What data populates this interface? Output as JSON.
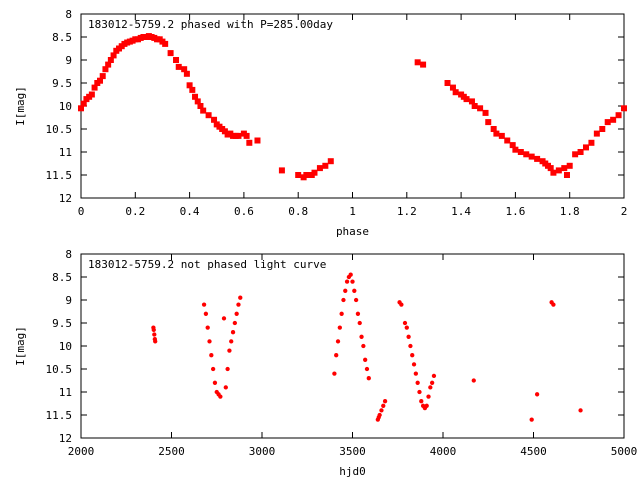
{
  "chart_data": [
    {
      "type": "scatter",
      "title": "183012-5759.2 phased with P=285.00day",
      "xlabel": "phase",
      "ylabel": "I[mag]",
      "xlim": [
        0,
        2
      ],
      "ylim": [
        12,
        8
      ],
      "y_inverted": true,
      "xticks": [
        "0",
        "0.2",
        "0.4",
        "0.6",
        "0.8",
        "1",
        "1.2",
        "1.4",
        "1.6",
        "1.8",
        "2"
      ],
      "yticks": [
        "8",
        "8.5",
        "9",
        "9.5",
        "10",
        "10.5",
        "11",
        "11.5",
        "12"
      ],
      "marker_color": "#ff0000",
      "marker": "plus-square",
      "series": [
        {
          "x": [
            0.0,
            0.01,
            0.02,
            0.03,
            0.04,
            0.05,
            0.06,
            0.07,
            0.08,
            0.09,
            0.1,
            0.11,
            0.12,
            0.13,
            0.14,
            0.15,
            0.16,
            0.17,
            0.18,
            0.19,
            0.2,
            0.21,
            0.22,
            0.23,
            0.24,
            0.25,
            0.26,
            0.27,
            0.28,
            0.29,
            0.3,
            0.31,
            0.33,
            0.35,
            0.36,
            0.38,
            0.39,
            0.4,
            0.41,
            0.42,
            0.43,
            0.44,
            0.45,
            0.47,
            0.49,
            0.5,
            0.51,
            0.52,
            0.53,
            0.54,
            0.55,
            0.56,
            0.57,
            0.58,
            0.6,
            0.61,
            0.62,
            0.65,
            0.74,
            0.8,
            0.82,
            0.83,
            0.85,
            0.86,
            0.88,
            0.9,
            0.92,
            1.24,
            1.26,
            1.35,
            1.37,
            1.38,
            1.4,
            1.41,
            1.42,
            1.44,
            1.45,
            1.47,
            1.49,
            1.5,
            1.52,
            1.53,
            1.55,
            1.57,
            1.59,
            1.6,
            1.62,
            1.64,
            1.66,
            1.68,
            1.7,
            1.71,
            1.72,
            1.73,
            1.74,
            1.76,
            1.78,
            1.79,
            1.8,
            1.82,
            1.84,
            1.86,
            1.88,
            1.9,
            1.92,
            1.94,
            1.96,
            1.98,
            2.0
          ],
          "y": [
            10.05,
            9.95,
            9.85,
            9.8,
            9.75,
            9.6,
            9.5,
            9.45,
            9.35,
            9.2,
            9.1,
            9.0,
            8.9,
            8.8,
            8.75,
            8.7,
            8.65,
            8.62,
            8.6,
            8.58,
            8.55,
            8.55,
            8.52,
            8.5,
            8.5,
            8.48,
            8.5,
            8.52,
            8.55,
            8.55,
            8.6,
            8.65,
            8.85,
            9.0,
            9.15,
            9.2,
            9.3,
            9.55,
            9.65,
            9.8,
            9.9,
            10.0,
            10.1,
            10.2,
            10.3,
            10.4,
            10.45,
            10.5,
            10.55,
            10.62,
            10.6,
            10.65,
            10.65,
            10.65,
            10.6,
            10.65,
            10.8,
            10.75,
            11.4,
            11.5,
            11.55,
            11.5,
            11.5,
            11.45,
            11.35,
            11.3,
            11.2,
            9.05,
            9.1,
            9.5,
            9.6,
            9.7,
            9.75,
            9.8,
            9.85,
            9.9,
            10.0,
            10.05,
            10.15,
            10.35,
            10.5,
            10.6,
            10.65,
            10.75,
            10.85,
            10.95,
            11.0,
            11.05,
            11.1,
            11.15,
            11.2,
            11.25,
            11.3,
            11.35,
            11.45,
            11.4,
            11.35,
            11.5,
            11.3,
            11.05,
            11.0,
            10.9,
            10.8,
            10.6,
            10.5,
            10.35,
            10.3,
            10.2,
            10.05
          ]
        }
      ]
    },
    {
      "type": "scatter",
      "title": "183012-5759.2 not phased light curve",
      "xlabel": "hjd0",
      "ylabel": "I[mag]",
      "xlim": [
        2000,
        5000
      ],
      "ylim": [
        12,
        8
      ],
      "y_inverted": true,
      "xticks": [
        "2000",
        "2500",
        "3000",
        "3500",
        "4000",
        "4500",
        "5000"
      ],
      "yticks": [
        "8",
        "8.5",
        "9",
        "9.5",
        "10",
        "10.5",
        "11",
        "11.5",
        "12"
      ],
      "marker_color": "#ff0000",
      "marker": "dot",
      "series": [
        {
          "x": [
            2400,
            2402,
            2405,
            2408,
            2410,
            2680,
            2690,
            2700,
            2710,
            2720,
            2730,
            2740,
            2750,
            2760,
            2770,
            2790,
            2800,
            2810,
            2820,
            2830,
            2840,
            2850,
            2860,
            2870,
            2880,
            3400,
            3410,
            3420,
            3430,
            3440,
            3450,
            3460,
            3470,
            3480,
            3490,
            3500,
            3510,
            3520,
            3530,
            3540,
            3550,
            3560,
            3570,
            3580,
            3590,
            3640,
            3645,
            3650,
            3660,
            3670,
            3680,
            3760,
            3770,
            3790,
            3800,
            3810,
            3820,
            3830,
            3840,
            3850,
            3860,
            3870,
            3880,
            3890,
            3900,
            3910,
            3920,
            3930,
            3940,
            3950,
            4170,
            4490,
            4520,
            4600,
            4610,
            4760
          ],
          "y": [
            9.6,
            9.65,
            9.75,
            9.85,
            9.9,
            9.1,
            9.3,
            9.6,
            9.9,
            10.2,
            10.5,
            10.8,
            11.0,
            11.05,
            11.1,
            9.4,
            10.9,
            10.5,
            10.1,
            9.9,
            9.7,
            9.5,
            9.3,
            9.1,
            8.95,
            10.6,
            10.2,
            9.9,
            9.6,
            9.3,
            9.0,
            8.8,
            8.6,
            8.5,
            8.45,
            8.6,
            8.8,
            9.0,
            9.3,
            9.5,
            9.8,
            10.0,
            10.3,
            10.5,
            10.7,
            11.6,
            11.55,
            11.5,
            11.4,
            11.3,
            11.2,
            9.05,
            9.1,
            9.5,
            9.6,
            9.8,
            10.0,
            10.2,
            10.4,
            10.6,
            10.8,
            11.0,
            11.2,
            11.3,
            11.35,
            11.3,
            11.1,
            10.9,
            10.8,
            10.65,
            10.75,
            11.6,
            11.05,
            9.05,
            9.1,
            11.4
          ]
        }
      ]
    }
  ]
}
